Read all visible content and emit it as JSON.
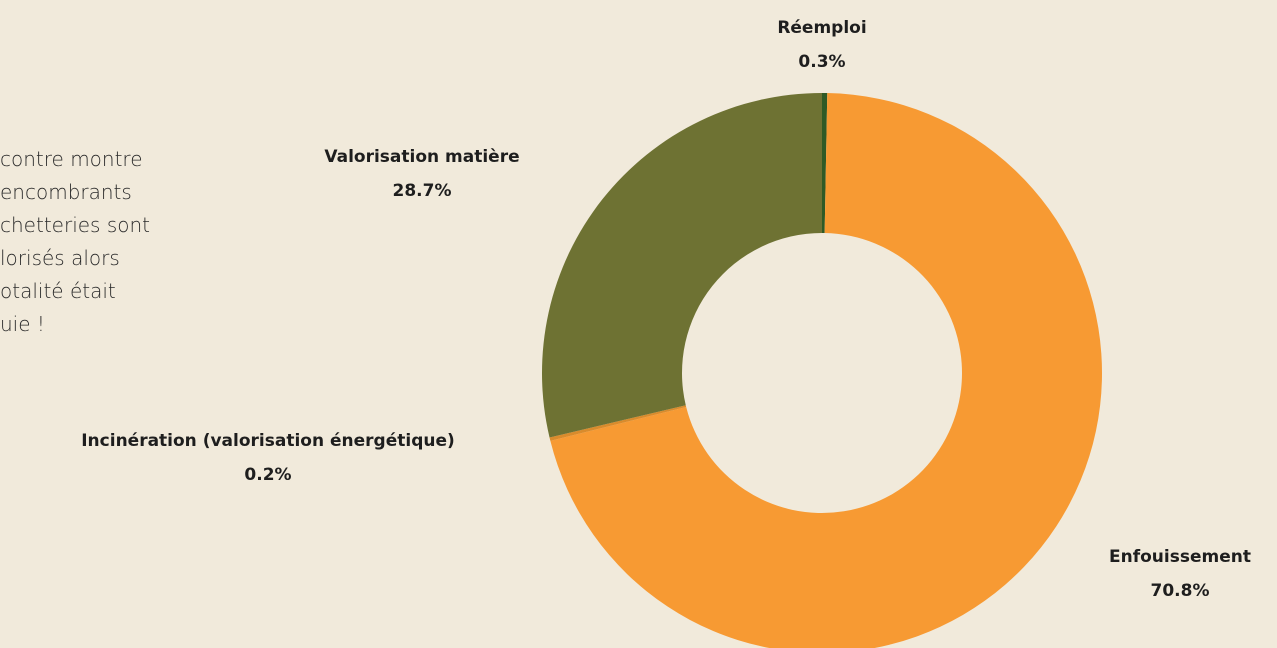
{
  "text_block": {
    "lines": [
      "contre montre",
      "encombrants",
      "chetteries sont",
      "lorisés alors",
      "otalité était",
      "uie !"
    ]
  },
  "chart_data": {
    "type": "donut",
    "categories": [
      "Réemploi",
      "Enfouissement",
      "Incinération (valorisation énergétique)",
      "Valorisation matière"
    ],
    "values": [
      0.3,
      70.8,
      0.2,
      28.7
    ],
    "value_labels": [
      "0.3%",
      "70.8%",
      "0.2%",
      "28.7%"
    ],
    "colors": [
      "#2f5a26",
      "#f79a33",
      "#d98b2c",
      "#6e7233"
    ]
  }
}
